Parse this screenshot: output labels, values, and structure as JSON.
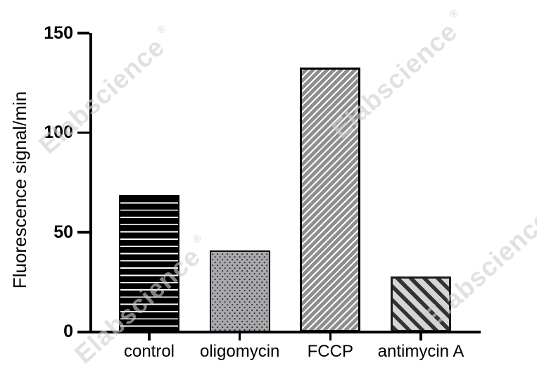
{
  "watermark": {
    "text": "Elabscience",
    "registered": "®"
  },
  "chart_data": {
    "type": "bar",
    "title": "",
    "ylabel": "Fluorescence signal/min",
    "xlabel": "",
    "ylim": [
      0,
      150
    ],
    "yticks": [
      0,
      50,
      100,
      150
    ],
    "categories": [
      "control",
      "oligomycin",
      "FCCP",
      "antimycin A"
    ],
    "values": [
      69,
      41,
      133,
      28
    ],
    "grid": false,
    "legend": false,
    "axis_color": "#000000",
    "bar_fill_patterns": [
      "horizontal-stripes",
      "dots",
      "diagonal-stripes-up",
      "diagonal-stripes-down"
    ],
    "bar_colors": [
      {
        "background": "#000000",
        "pattern": "#ffffff"
      },
      {
        "background": "#a9a9ad",
        "pattern": "#2b2b2b"
      },
      {
        "background": "#8e8e8e",
        "pattern": "#ffffff"
      },
      {
        "background": "#d5d5d5",
        "pattern": "#333333"
      }
    ]
  }
}
